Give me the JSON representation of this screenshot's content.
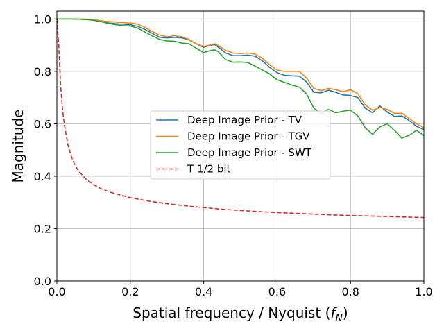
{
  "chart_data": {
    "type": "line",
    "title": "",
    "xlabel": "Spatial frequency / Nyquist (",
    "xlabel_symbol": "f",
    "xlabel_sub": "N",
    "xlabel_close": ")",
    "ylabel": "Magnitude",
    "xlim": [
      0,
      1
    ],
    "ylim": [
      0,
      1.03
    ],
    "xticks": [
      0.0,
      0.2,
      0.4,
      0.6,
      0.8,
      1.0
    ],
    "xtick_labels": [
      "0.0",
      "0.2",
      "0.4",
      "0.6",
      "0.8",
      "1.0"
    ],
    "yticks": [
      0.0,
      0.2,
      0.4,
      0.6,
      0.8,
      1.0
    ],
    "ytick_labels": [
      "0.0",
      "0.2",
      "0.4",
      "0.6",
      "0.8",
      "1.0"
    ],
    "grid": true,
    "legend_position": "center-right",
    "series": [
      {
        "name": "Deep Image Prior - TV",
        "color": "#1f77b4",
        "style": "solid",
        "x": [
          0.0,
          0.02,
          0.04,
          0.06,
          0.08,
          0.1,
          0.12,
          0.14,
          0.16,
          0.18,
          0.2,
          0.22,
          0.24,
          0.26,
          0.28,
          0.3,
          0.32,
          0.34,
          0.36,
          0.38,
          0.4,
          0.42,
          0.43,
          0.44,
          0.46,
          0.48,
          0.5,
          0.52,
          0.54,
          0.56,
          0.58,
          0.6,
          0.62,
          0.64,
          0.66,
          0.68,
          0.7,
          0.72,
          0.74,
          0.76,
          0.78,
          0.8,
          0.82,
          0.84,
          0.86,
          0.88,
          0.9,
          0.92,
          0.94,
          0.96,
          0.98,
          1.0
        ],
        "y": [
          1.0,
          1.0,
          1.0,
          0.999,
          0.998,
          0.995,
          0.99,
          0.985,
          0.982,
          0.98,
          0.978,
          0.972,
          0.96,
          0.945,
          0.93,
          0.928,
          0.93,
          0.928,
          0.92,
          0.905,
          0.892,
          0.9,
          0.902,
          0.892,
          0.87,
          0.86,
          0.86,
          0.862,
          0.858,
          0.84,
          0.815,
          0.795,
          0.785,
          0.783,
          0.782,
          0.76,
          0.72,
          0.718,
          0.728,
          0.72,
          0.71,
          0.708,
          0.7,
          0.66,
          0.642,
          0.668,
          0.645,
          0.628,
          0.63,
          0.612,
          0.59,
          0.578
        ]
      },
      {
        "name": "Deep Image Prior - TGV",
        "color": "#ff7f0e",
        "style": "solid",
        "x": [
          0.0,
          0.02,
          0.04,
          0.06,
          0.08,
          0.1,
          0.12,
          0.14,
          0.16,
          0.18,
          0.2,
          0.22,
          0.24,
          0.26,
          0.28,
          0.3,
          0.32,
          0.34,
          0.36,
          0.38,
          0.4,
          0.42,
          0.43,
          0.44,
          0.46,
          0.48,
          0.5,
          0.52,
          0.54,
          0.56,
          0.58,
          0.6,
          0.62,
          0.64,
          0.66,
          0.68,
          0.7,
          0.72,
          0.74,
          0.76,
          0.78,
          0.8,
          0.82,
          0.84,
          0.86,
          0.88,
          0.9,
          0.92,
          0.94,
          0.96,
          0.98,
          1.0
        ],
        "y": [
          1.0,
          1.0,
          1.0,
          1.0,
          0.999,
          0.997,
          0.993,
          0.99,
          0.988,
          0.986,
          0.985,
          0.98,
          0.968,
          0.952,
          0.938,
          0.932,
          0.936,
          0.932,
          0.922,
          0.905,
          0.895,
          0.902,
          0.905,
          0.898,
          0.88,
          0.87,
          0.868,
          0.87,
          0.866,
          0.85,
          0.825,
          0.805,
          0.8,
          0.8,
          0.8,
          0.775,
          0.735,
          0.726,
          0.735,
          0.73,
          0.722,
          0.73,
          0.715,
          0.672,
          0.652,
          0.662,
          0.655,
          0.64,
          0.64,
          0.62,
          0.6,
          0.585
        ]
      },
      {
        "name": "Deep Image Prior - SWT",
        "color": "#2ca02c",
        "style": "solid",
        "x": [
          0.0,
          0.02,
          0.04,
          0.06,
          0.08,
          0.1,
          0.12,
          0.14,
          0.16,
          0.18,
          0.2,
          0.22,
          0.24,
          0.26,
          0.28,
          0.3,
          0.32,
          0.34,
          0.36,
          0.38,
          0.4,
          0.42,
          0.43,
          0.44,
          0.46,
          0.48,
          0.5,
          0.52,
          0.54,
          0.56,
          0.58,
          0.6,
          0.62,
          0.64,
          0.66,
          0.68,
          0.7,
          0.72,
          0.74,
          0.76,
          0.78,
          0.8,
          0.82,
          0.84,
          0.86,
          0.88,
          0.9,
          0.92,
          0.94,
          0.96,
          0.98,
          1.0
        ],
        "y": [
          1.0,
          1.0,
          1.0,
          0.999,
          0.998,
          0.995,
          0.99,
          0.983,
          0.978,
          0.975,
          0.973,
          0.965,
          0.95,
          0.935,
          0.922,
          0.916,
          0.915,
          0.908,
          0.905,
          0.888,
          0.872,
          0.88,
          0.882,
          0.875,
          0.845,
          0.835,
          0.836,
          0.834,
          0.82,
          0.805,
          0.79,
          0.768,
          0.758,
          0.748,
          0.74,
          0.715,
          0.66,
          0.638,
          0.655,
          0.642,
          0.648,
          0.652,
          0.63,
          0.585,
          0.56,
          0.588,
          0.6,
          0.575,
          0.545,
          0.556,
          0.575,
          0.555
        ]
      },
      {
        "name": "T 1/2 bit",
        "color": "#d62728",
        "style": "dashed",
        "x": [
          0.0,
          0.005,
          0.01,
          0.015,
          0.02,
          0.03,
          0.04,
          0.05,
          0.06,
          0.08,
          0.1,
          0.12,
          0.15,
          0.2,
          0.25,
          0.3,
          0.35,
          0.4,
          0.45,
          0.5,
          0.55,
          0.6,
          0.65,
          0.7,
          0.75,
          0.8,
          0.85,
          0.9,
          0.95,
          1.0
        ],
        "y": [
          1.0,
          0.9,
          0.75,
          0.66,
          0.6,
          0.52,
          0.472,
          0.44,
          0.418,
          0.388,
          0.368,
          0.352,
          0.337,
          0.318,
          0.305,
          0.295,
          0.287,
          0.28,
          0.274,
          0.269,
          0.265,
          0.261,
          0.258,
          0.255,
          0.252,
          0.25,
          0.248,
          0.246,
          0.244,
          0.242
        ]
      }
    ]
  }
}
